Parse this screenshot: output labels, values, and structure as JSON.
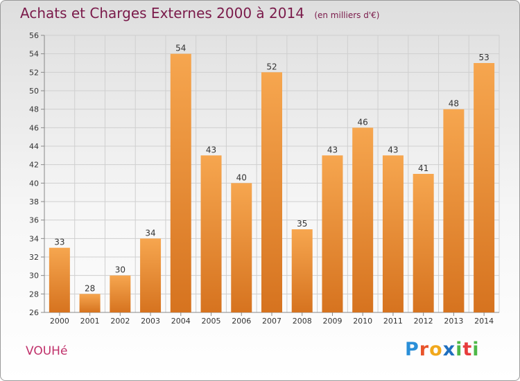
{
  "header": {
    "title": "Achats et Charges Externes 2000 à 2014",
    "unit": "(en milliers d'€)"
  },
  "footer": {
    "commune": "VOUHé",
    "brand": "Proxiti"
  },
  "colors": {
    "bar_light": "#f6a64f",
    "bar_dark": "#d6731f",
    "title": "#7a1a4a",
    "commune": "#c0306a"
  },
  "chart_data": {
    "type": "bar",
    "title": "Achats et Charges Externes 2000 à 2014",
    "subtitle": "(en milliers d'€)",
    "xlabel": "",
    "ylabel": "",
    "categories": [
      "2000",
      "2001",
      "2002",
      "2003",
      "2004",
      "2005",
      "2006",
      "2007",
      "2008",
      "2009",
      "2010",
      "2011",
      "2012",
      "2013",
      "2014"
    ],
    "values": [
      33,
      28,
      30,
      34,
      54,
      43,
      40,
      52,
      35,
      43,
      46,
      43,
      41,
      48,
      53
    ],
    "ylim": [
      26,
      56
    ],
    "yticks": [
      26,
      28,
      30,
      32,
      34,
      36,
      38,
      40,
      42,
      44,
      46,
      48,
      50,
      52,
      54,
      56
    ],
    "grid": true
  }
}
